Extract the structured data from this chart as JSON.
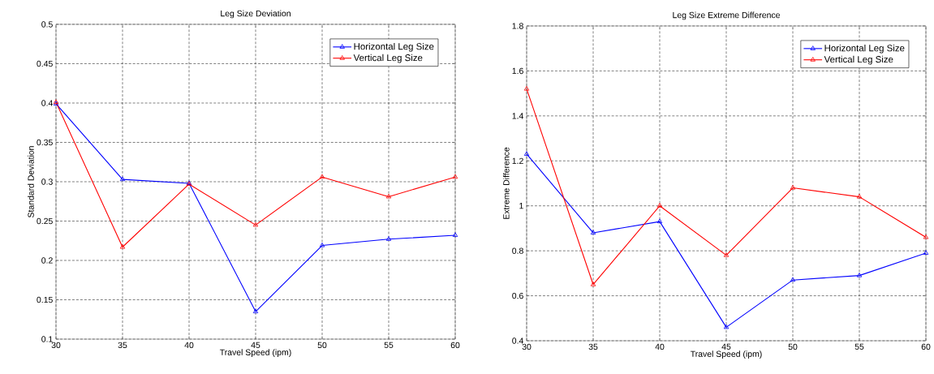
{
  "chart_data": [
    {
      "type": "line",
      "title": "Leg Size Deviation",
      "xlabel": "Travel Speed (ipm)",
      "ylabel": "Standard Deviation",
      "x": [
        30,
        35,
        40,
        45,
        50,
        55,
        60
      ],
      "series": [
        {
          "name": "Horizontal Leg Size",
          "color": "#0000ff",
          "values": [
            0.399,
            0.303,
            0.298,
            0.135,
            0.219,
            0.227,
            0.232
          ]
        },
        {
          "name": "Vertical Leg Size",
          "color": "#ff0000",
          "values": [
            0.401,
            0.217,
            0.297,
            0.245,
            0.306,
            0.281,
            0.306
          ]
        }
      ],
      "xlim": [
        30,
        60
      ],
      "xticks": [
        30,
        35,
        40,
        45,
        50,
        55,
        60
      ],
      "ylim": [
        0.1,
        0.5
      ],
      "yticks": [
        0.1,
        0.15,
        0.2,
        0.25,
        0.3,
        0.35,
        0.4,
        0.45,
        0.5
      ],
      "grid": true,
      "legend": "top right",
      "marker": "triangle"
    },
    {
      "type": "line",
      "title": "Leg Size Extreme Difference",
      "xlabel": "Travel Speed (ipm)",
      "ylabel": "Extreme Difference",
      "x": [
        30,
        35,
        40,
        45,
        50,
        55,
        60
      ],
      "series": [
        {
          "name": "Horizontal Leg Size",
          "color": "#0000ff",
          "values": [
            1.23,
            0.88,
            0.93,
            0.46,
            0.67,
            0.69,
            0.79
          ]
        },
        {
          "name": "Vertical Leg Size",
          "color": "#ff0000",
          "values": [
            1.52,
            0.65,
            1.0,
            0.78,
            1.08,
            1.04,
            0.86
          ]
        }
      ],
      "xlim": [
        30,
        60
      ],
      "xticks": [
        30,
        35,
        40,
        45,
        50,
        55,
        60
      ],
      "ylim": [
        0.4,
        1.8
      ],
      "yticks": [
        0.4,
        0.6,
        0.8,
        1,
        1.2,
        1.4,
        1.6,
        1.8
      ],
      "grid": true,
      "legend": "top right",
      "marker": "triangle"
    }
  ]
}
